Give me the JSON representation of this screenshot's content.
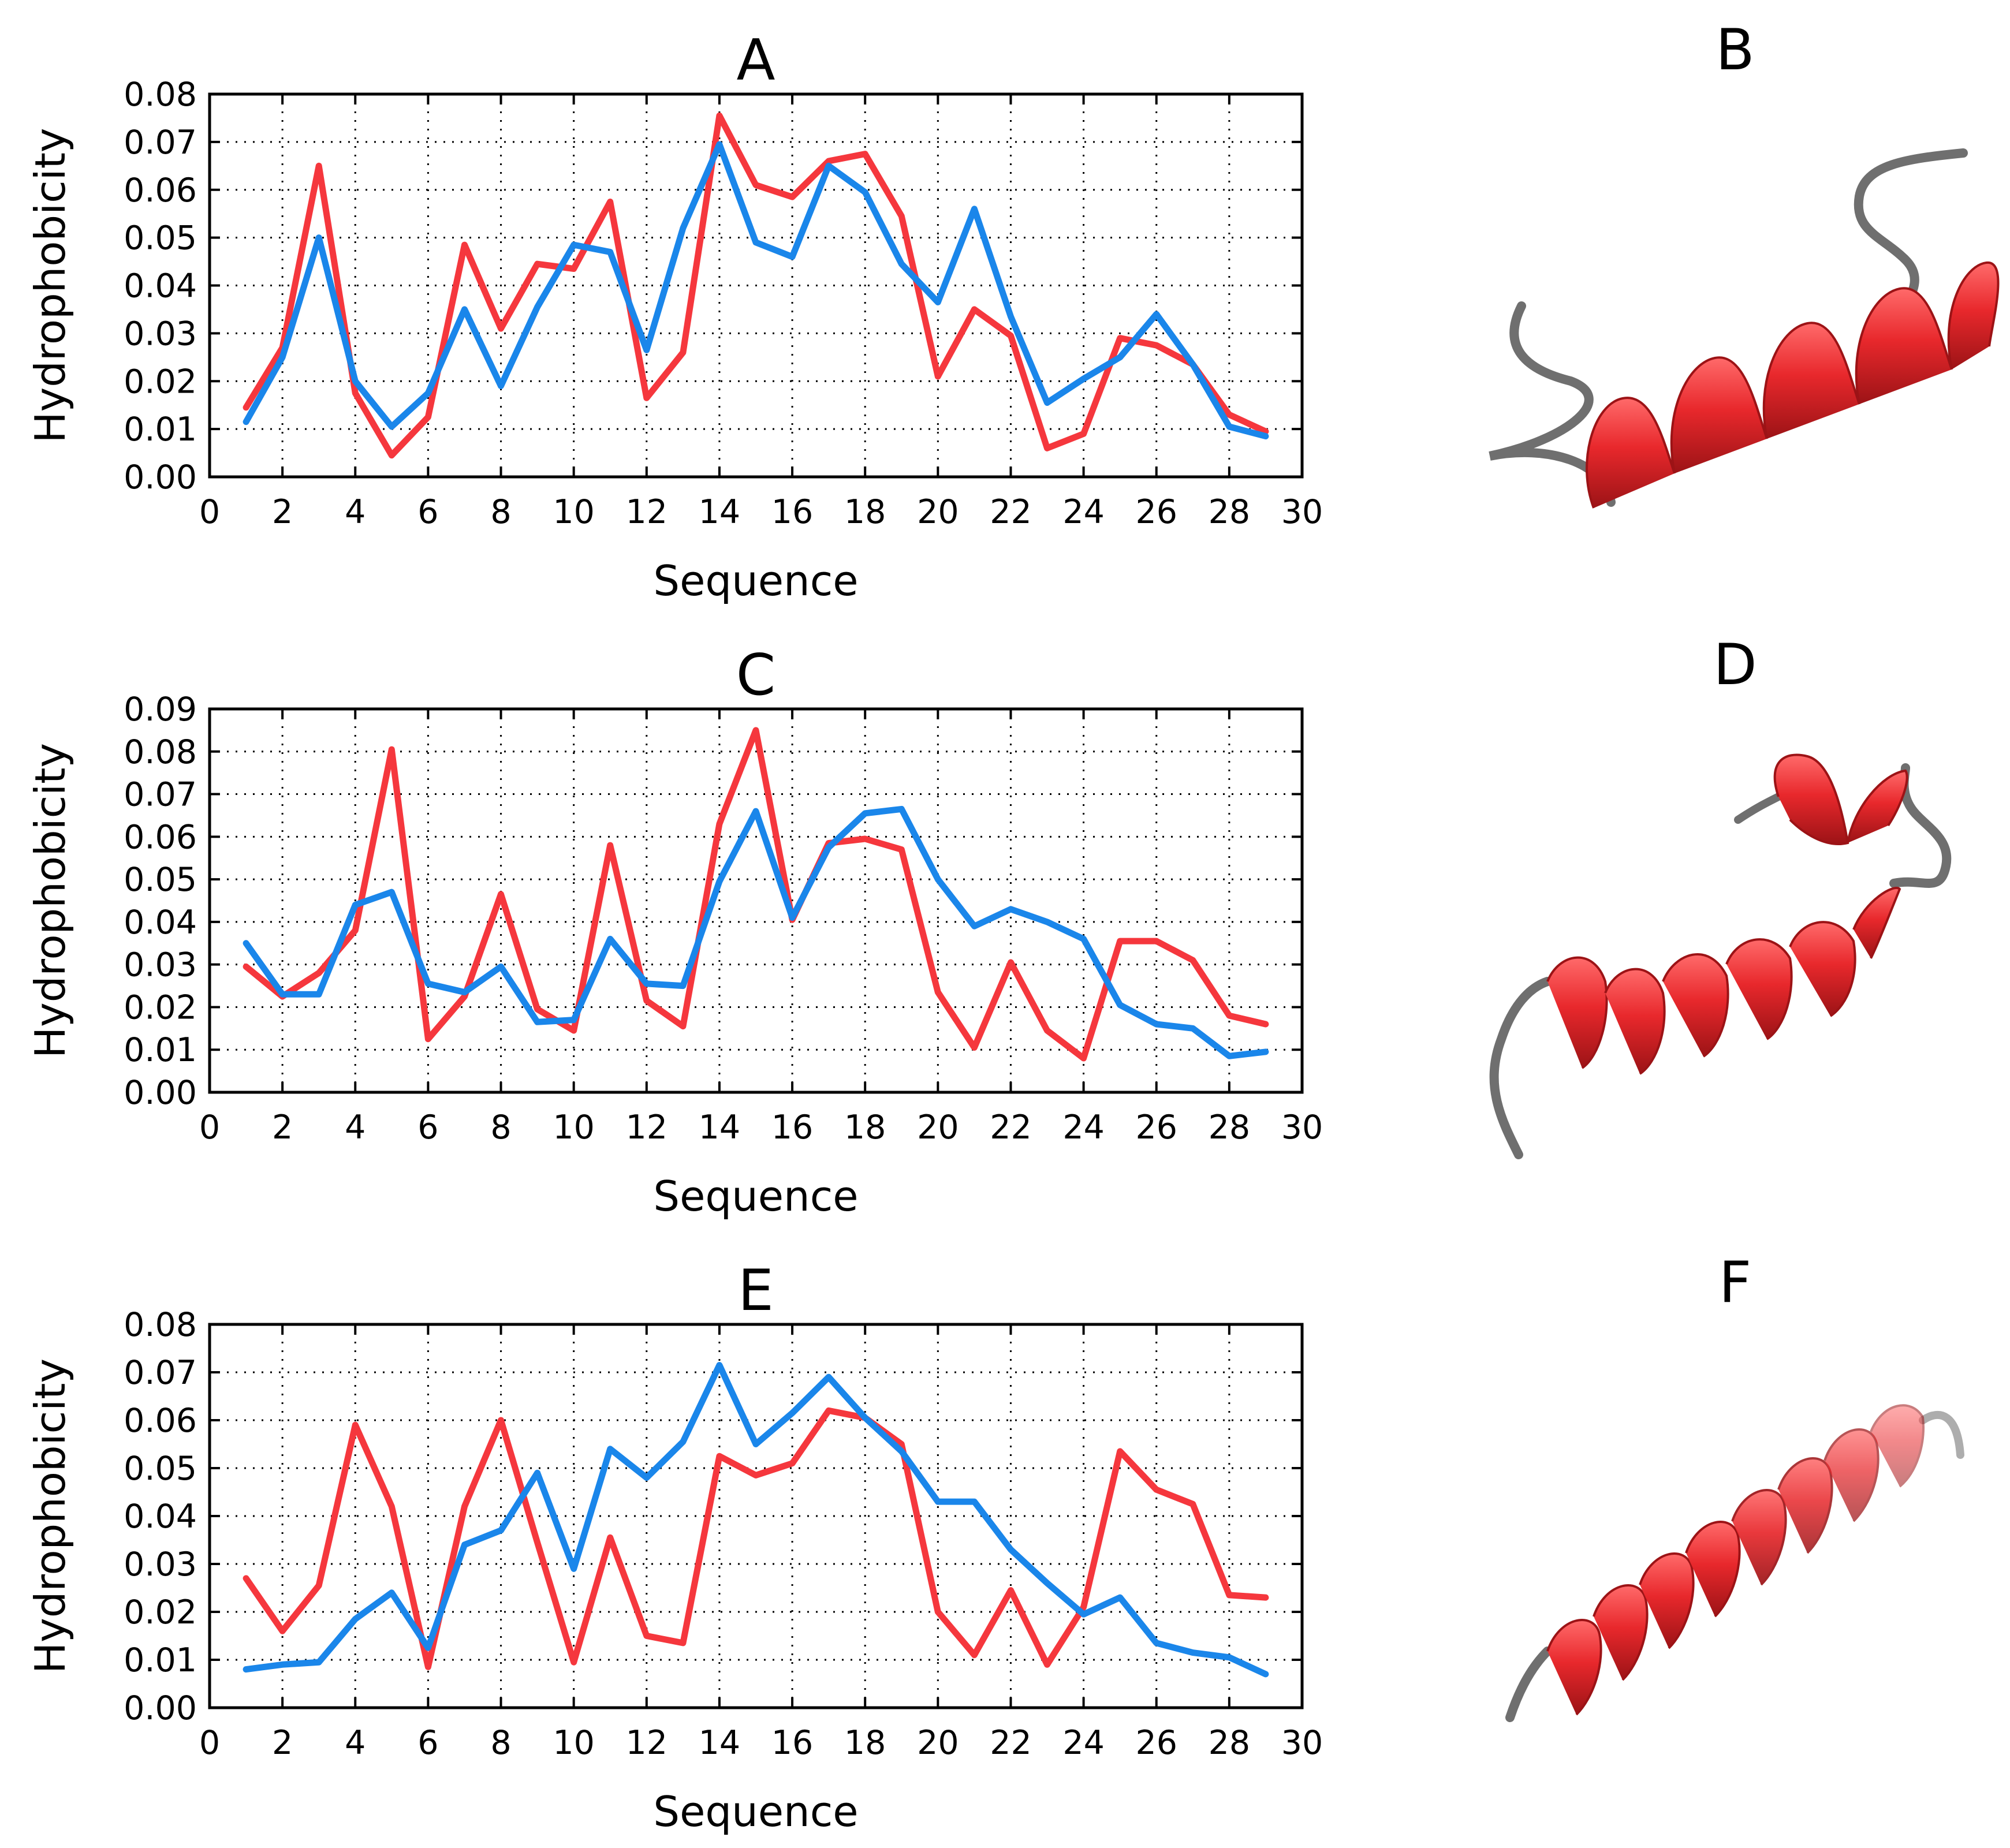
{
  "colors": {
    "red_series": "#f5373d",
    "blue_series": "#1a86ea",
    "helix": "#e8282c",
    "helix_dark": "#9c1316",
    "coil": "#6f6f6f"
  },
  "structure_labels": {
    "b": "B",
    "d": "D",
    "f": "F"
  },
  "chart_data": [
    {
      "type": "line",
      "title": "A",
      "xlabel": "Sequence",
      "ylabel": "Hydrophobicity",
      "xlim": [
        0,
        30
      ],
      "ylim": [
        0,
        0.08
      ],
      "xticks": [
        "0",
        "2",
        "4",
        "6",
        "8",
        "10",
        "12",
        "14",
        "16",
        "18",
        "20",
        "22",
        "24",
        "26",
        "28",
        "30"
      ],
      "yticks": [
        "0.00",
        "0.01",
        "0.02",
        "0.03",
        "0.04",
        "0.05",
        "0.06",
        "0.07",
        "0.08"
      ],
      "grid": true,
      "x": [
        1,
        2,
        3,
        4,
        5,
        6,
        7,
        8,
        9,
        10,
        11,
        12,
        13,
        14,
        15,
        16,
        17,
        18,
        19,
        20,
        21,
        22,
        23,
        24,
        25,
        26,
        27,
        28,
        29
      ],
      "series": [
        {
          "name": "red",
          "color": "#f5373d",
          "values": [
            0.0145,
            0.027,
            0.065,
            0.0175,
            0.0045,
            0.0125,
            0.0485,
            0.031,
            0.0445,
            0.0435,
            0.0575,
            0.0165,
            0.026,
            0.0755,
            0.061,
            0.0585,
            0.066,
            0.0675,
            0.0545,
            0.021,
            0.035,
            0.0295,
            0.006,
            0.009,
            0.029,
            0.0275,
            0.0235,
            0.013,
            0.0095
          ]
        },
        {
          "name": "blue",
          "color": "#1a86ea",
          "values": [
            0.0115,
            0.025,
            0.05,
            0.02,
            0.0105,
            0.0175,
            0.035,
            0.019,
            0.0355,
            0.0485,
            0.047,
            0.0265,
            0.052,
            0.0695,
            0.049,
            0.046,
            0.065,
            0.0595,
            0.0445,
            0.0365,
            0.056,
            0.0335,
            0.0155,
            0.0205,
            0.025,
            0.034,
            0.0235,
            0.0105,
            0.0085
          ]
        }
      ]
    },
    {
      "type": "line",
      "title": "C",
      "xlabel": "Sequence",
      "ylabel": "Hydrophobicity",
      "xlim": [
        0,
        30
      ],
      "ylim": [
        0,
        0.09
      ],
      "xticks": [
        "0",
        "2",
        "4",
        "6",
        "8",
        "10",
        "12",
        "14",
        "16",
        "18",
        "20",
        "22",
        "24",
        "26",
        "28",
        "30"
      ],
      "yticks": [
        "0.00",
        "0.01",
        "0.02",
        "0.03",
        "0.04",
        "0.05",
        "0.06",
        "0.07",
        "0.08",
        "0.09"
      ],
      "grid": true,
      "x": [
        1,
        2,
        3,
        4,
        5,
        6,
        7,
        8,
        9,
        10,
        11,
        12,
        13,
        14,
        15,
        16,
        17,
        18,
        19,
        20,
        21,
        22,
        23,
        24,
        25,
        26,
        27,
        28,
        29
      ],
      "series": [
        {
          "name": "red",
          "color": "#f5373d",
          "values": [
            0.0295,
            0.0225,
            0.028,
            0.038,
            0.0805,
            0.0125,
            0.0225,
            0.0465,
            0.0195,
            0.0145,
            0.058,
            0.0215,
            0.0155,
            0.063,
            0.085,
            0.0405,
            0.0585,
            0.0595,
            0.057,
            0.0235,
            0.0105,
            0.0305,
            0.0145,
            0.008,
            0.0355,
            0.0355,
            0.031,
            0.018,
            0.016
          ]
        },
        {
          "name": "blue",
          "color": "#1a86ea",
          "values": [
            0.035,
            0.023,
            0.023,
            0.044,
            0.047,
            0.0255,
            0.0235,
            0.0295,
            0.0165,
            0.017,
            0.036,
            0.0255,
            0.025,
            0.0495,
            0.066,
            0.041,
            0.0575,
            0.0655,
            0.0665,
            0.05,
            0.039,
            0.043,
            0.04,
            0.036,
            0.0205,
            0.016,
            0.015,
            0.0085,
            0.0095
          ]
        }
      ]
    },
    {
      "type": "line",
      "title": "E",
      "xlabel": "Sequence",
      "ylabel": "Hydrophobicity",
      "xlim": [
        0,
        30
      ],
      "ylim": [
        0,
        0.08
      ],
      "xticks": [
        "0",
        "2",
        "4",
        "6",
        "8",
        "10",
        "12",
        "14",
        "16",
        "18",
        "20",
        "22",
        "24",
        "26",
        "28",
        "30"
      ],
      "yticks": [
        "0.00",
        "0.01",
        "0.02",
        "0.03",
        "0.04",
        "0.05",
        "0.06",
        "0.07",
        "0.08"
      ],
      "grid": true,
      "x": [
        1,
        2,
        3,
        4,
        5,
        6,
        7,
        8,
        9,
        10,
        11,
        12,
        13,
        14,
        15,
        16,
        17,
        18,
        19,
        20,
        21,
        22,
        23,
        24,
        25,
        26,
        27,
        28,
        29
      ],
      "series": [
        {
          "name": "red",
          "color": "#f5373d",
          "values": [
            0.027,
            0.016,
            0.0255,
            0.059,
            0.042,
            0.0085,
            0.042,
            0.06,
            0.0345,
            0.0095,
            0.0355,
            0.015,
            0.0135,
            0.0525,
            0.0485,
            0.051,
            0.062,
            0.0605,
            0.055,
            0.02,
            0.011,
            0.0245,
            0.009,
            0.021,
            0.0535,
            0.0455,
            0.0425,
            0.0235,
            0.023
          ]
        },
        {
          "name": "blue",
          "color": "#1a86ea",
          "values": [
            0.008,
            0.009,
            0.0095,
            0.0185,
            0.024,
            0.0125,
            0.034,
            0.037,
            0.049,
            0.029,
            0.054,
            0.048,
            0.0555,
            0.0715,
            0.055,
            0.0615,
            0.069,
            0.0605,
            0.0535,
            0.043,
            0.043,
            0.033,
            0.026,
            0.0195,
            0.023,
            0.0135,
            0.0115,
            0.0105,
            0.007
          ]
        }
      ]
    }
  ]
}
